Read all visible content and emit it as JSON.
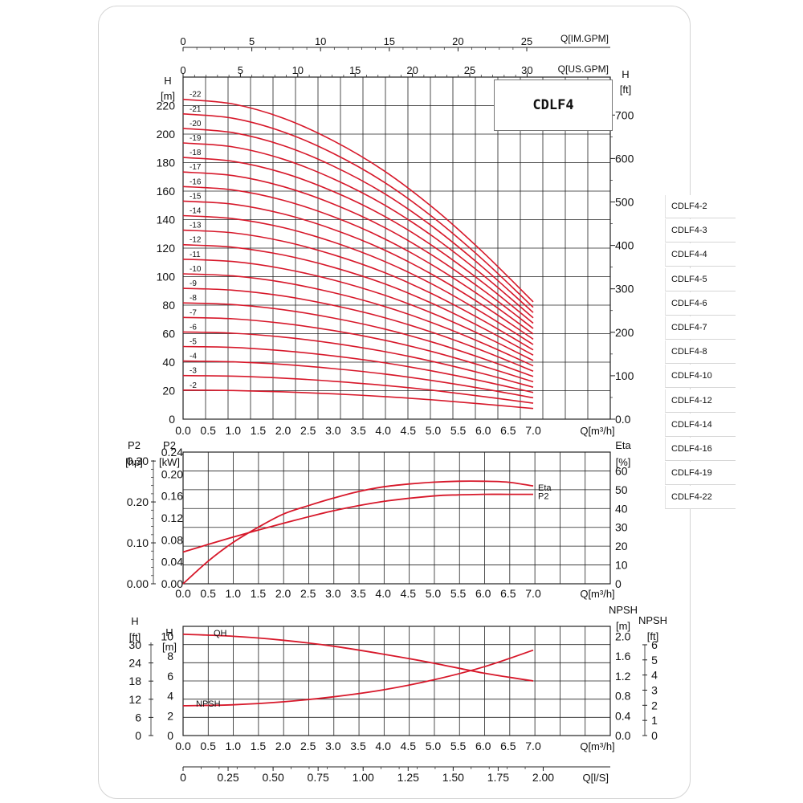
{
  "model_title": "CDLF4",
  "model_list": [
    "CDLF4-2",
    "CDLF4-3",
    "CDLF4-4",
    "CDLF4-5",
    "CDLF4-6",
    "CDLF4-7",
    "CDLF4-8",
    "CDLF4-10",
    "CDLF4-12",
    "CDLF4-14",
    "CDLF4-16",
    "CDLF4-19",
    "CDLF4-22"
  ],
  "colors": {
    "curve": "#d7182a",
    "grid": "#222222",
    "frame": "#d4d4d4"
  },
  "chart_data": [
    {
      "id": "qh-multistage",
      "type": "line",
      "x_top_labels": {
        "im_gpm": {
          "label": "Q[IM.GPM]",
          "ticks": [
            "0",
            "5",
            "10",
            "15",
            "20",
            "25"
          ]
        },
        "us_gpm": {
          "label": "Q[US.GPM]",
          "ticks": [
            "0",
            "5",
            "10",
            "15",
            "20",
            "25",
            "30"
          ]
        }
      },
      "xlabel": "Q[m³/h]",
      "x_ticks": [
        "0.0",
        "0.5",
        "1.0",
        "1.5",
        "2.0",
        "2.5",
        "3.0",
        "3.5",
        "4.0",
        "4.5",
        "5.0",
        "5.5",
        "6.0",
        "6.5",
        "7.0"
      ],
      "xlim": [
        0,
        7
      ],
      "ylabel_left": [
        "H",
        "[m]"
      ],
      "y_ticks_left": [
        "0",
        "20",
        "40",
        "60",
        "80",
        "100",
        "120",
        "140",
        "160",
        "180",
        "200",
        "220"
      ],
      "ylim": [
        0,
        240
      ],
      "ylabel_right": [
        "H",
        "[ft]"
      ],
      "y_ticks_right": [
        "0.0",
        "100",
        "200",
        "300",
        "400",
        "500",
        "600",
        "700"
      ],
      "x": [
        0,
        1,
        2,
        3,
        4,
        5,
        6,
        7
      ],
      "series": [
        {
          "name": "-2",
          "values": [
            20.4,
            20.1,
            19.2,
            17.8,
            15.9,
            13.5,
            10.6,
            7.5
          ]
        },
        {
          "name": "-3",
          "values": [
            30.6,
            30.2,
            28.8,
            26.6,
            23.8,
            20.2,
            15.9,
            11.2
          ]
        },
        {
          "name": "-4",
          "values": [
            40.8,
            40.2,
            38.4,
            35.5,
            31.8,
            27.0,
            21.3,
            15.0
          ]
        },
        {
          "name": "-5",
          "values": [
            51.0,
            50.3,
            48.0,
            44.4,
            39.7,
            33.7,
            26.6,
            18.7
          ]
        },
        {
          "name": "-6",
          "values": [
            61.2,
            60.3,
            57.6,
            53.3,
            47.6,
            40.4,
            31.9,
            22.4
          ]
        },
        {
          "name": "-7",
          "values": [
            71.4,
            70.4,
            67.2,
            62.2,
            55.6,
            47.2,
            37.2,
            26.2
          ]
        },
        {
          "name": "-8",
          "values": [
            81.6,
            80.4,
            76.8,
            71.0,
            63.5,
            53.9,
            42.5,
            29.9
          ]
        },
        {
          "name": "-9",
          "values": [
            91.8,
            90.5,
            86.4,
            79.9,
            71.5,
            60.7,
            47.9,
            33.7
          ]
        },
        {
          "name": "-10",
          "values": [
            102.0,
            100.5,
            96.0,
            88.8,
            79.4,
            67.4,
            53.2,
            37.4
          ]
        },
        {
          "name": "-11",
          "values": [
            112.2,
            110.6,
            105.6,
            97.7,
            87.3,
            74.1,
            58.5,
            41.1
          ]
        },
        {
          "name": "-12",
          "values": [
            122.4,
            120.6,
            115.2,
            106.6,
            95.3,
            80.9,
            63.8,
            44.9
          ]
        },
        {
          "name": "-13",
          "values": [
            132.6,
            130.7,
            124.8,
            115.4,
            103.2,
            87.6,
            69.1,
            48.6
          ]
        },
        {
          "name": "-14",
          "values": [
            142.8,
            140.7,
            134.4,
            124.3,
            111.1,
            94.4,
            74.4,
            52.4
          ]
        },
        {
          "name": "-15",
          "values": [
            153.0,
            150.8,
            144.0,
            133.2,
            119.1,
            101.1,
            79.8,
            56.1
          ]
        },
        {
          "name": "-16",
          "values": [
            163.2,
            160.8,
            153.6,
            142.1,
            127.0,
            107.8,
            85.1,
            59.8
          ]
        },
        {
          "name": "-17",
          "values": [
            173.4,
            170.9,
            163.2,
            151.0,
            135.0,
            114.6,
            90.4,
            63.6
          ]
        },
        {
          "name": "-18",
          "values": [
            183.6,
            180.9,
            172.8,
            159.8,
            142.9,
            121.3,
            95.7,
            67.3
          ]
        },
        {
          "name": "-19",
          "values": [
            193.8,
            191.0,
            182.4,
            168.7,
            150.8,
            128.1,
            101.0,
            71.1
          ]
        },
        {
          "name": "-20",
          "values": [
            204.0,
            201.0,
            192.0,
            177.6,
            158.8,
            134.8,
            106.3,
            74.8
          ]
        },
        {
          "name": "-21",
          "values": [
            214.2,
            211.1,
            201.6,
            186.5,
            166.7,
            141.5,
            111.7,
            78.5
          ]
        },
        {
          "name": "-22",
          "values": [
            224.4,
            221.1,
            211.2,
            195.4,
            174.7,
            148.3,
            117.0,
            82.3
          ]
        }
      ]
    },
    {
      "id": "power-efficiency",
      "type": "line",
      "xlabel": "Q[m³/h]",
      "x_ticks": [
        "0.0",
        "0.5",
        "1.0",
        "1.5",
        "2.0",
        "2.5",
        "3.0",
        "3.5",
        "4.0",
        "4.5",
        "5.0",
        "5.5",
        "6.0",
        "6.5",
        "7.0"
      ],
      "xlim": [
        0,
        7
      ],
      "ylabel_hp": [
        "P2",
        "[hp]"
      ],
      "y_ticks_hp": [
        "0.00",
        "0.10",
        "0.20",
        "0.30"
      ],
      "ylabel_left": [
        "P2",
        "[kW]"
      ],
      "y_ticks_left": [
        "0.00",
        "0.04",
        "0.08",
        "0.12",
        "0.16",
        "0.20",
        "0.24"
      ],
      "ylim": [
        0,
        0.24
      ],
      "ylabel_right": [
        "Eta",
        "[%]"
      ],
      "y_ticks_right": [
        "0",
        "10",
        "20",
        "30",
        "40",
        "50",
        "60"
      ],
      "series": [
        {
          "name": "Eta",
          "axis": "right",
          "x": [
            0,
            0.5,
            1,
            1.5,
            2,
            2.5,
            3,
            3.5,
            4,
            4.5,
            5,
            5.5,
            6,
            6.5,
            7
          ],
          "values": [
            0,
            12,
            22,
            30,
            37,
            41.5,
            45.5,
            49,
            51.5,
            53,
            54,
            54.5,
            54.5,
            54,
            52
          ]
        },
        {
          "name": "P2",
          "axis": "left",
          "x": [
            0,
            1,
            2,
            3,
            4,
            5,
            5.5,
            6,
            6.5,
            7
          ],
          "values": [
            0.058,
            0.085,
            0.11,
            0.133,
            0.15,
            0.16,
            0.162,
            0.163,
            0.163,
            0.163
          ]
        }
      ]
    },
    {
      "id": "npsh",
      "type": "line",
      "xlabel": "Q[m³/h]",
      "x_ticks": [
        "0.0",
        "0.5",
        "1.0",
        "1.5",
        "2.0",
        "2.5",
        "3.0",
        "3.5",
        "4.0",
        "4.5",
        "5.0",
        "5.5",
        "6.0",
        "6.5",
        "7.0"
      ],
      "xlim": [
        0,
        7
      ],
      "ylabel_ft_left": [
        "H",
        "[ft]"
      ],
      "y_ticks_ft_left": [
        "0",
        "6",
        "12",
        "18",
        "24",
        "30"
      ],
      "ylabel_left": [
        "H",
        "[m]"
      ],
      "y_ticks_left": [
        "0",
        "2",
        "4",
        "6",
        "8",
        "10"
      ],
      "ylim": [
        0,
        11
      ],
      "ylabel_right": [
        "NPSH",
        "[m]"
      ],
      "y_ticks_right": [
        "0.0",
        "0.4",
        "0.8",
        "1.2",
        "1.6",
        "2.0"
      ],
      "ylabel_right_ft": [
        "NPSH",
        "[ft]"
      ],
      "y_ticks_right_ft": [
        "0",
        "1",
        "2",
        "3",
        "4",
        "5",
        "6"
      ],
      "lower_x_axis": {
        "label": "Q[l/S]",
        "ticks": [
          "0",
          "0.25",
          "0.50",
          "0.75",
          "1.00",
          "1.25",
          "1.50",
          "1.75",
          "2.00"
        ]
      },
      "series": [
        {
          "name": "QH",
          "axis": "left",
          "x": [
            0,
            1,
            2,
            3,
            4,
            5,
            6,
            7
          ],
          "values": [
            10.2,
            10.0,
            9.6,
            9.0,
            8.2,
            7.3,
            6.3,
            5.5
          ]
        },
        {
          "name": "NPSH",
          "axis": "right",
          "x": [
            0,
            1,
            2,
            3,
            4,
            5,
            6,
            7
          ],
          "values": [
            0.6,
            0.62,
            0.68,
            0.78,
            0.92,
            1.12,
            1.38,
            1.72
          ]
        }
      ]
    }
  ]
}
